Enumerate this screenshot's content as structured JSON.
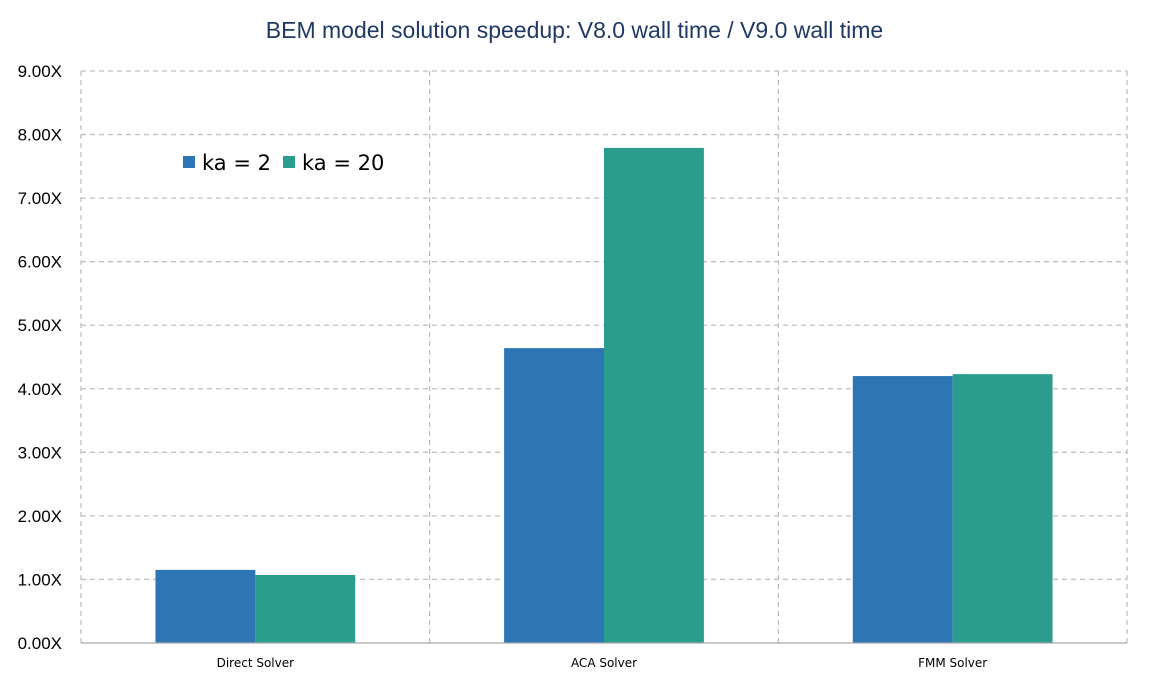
{
  "chart_data": {
    "type": "bar",
    "title": "BEM model solution speedup: V8.0 wall time / V9.0 wall time",
    "xlabel": "",
    "ylabel": "",
    "categories": [
      "Direct Solver",
      "ACA Solver",
      "FMM Solver"
    ],
    "series": [
      {
        "name": "ka = 2",
        "values": [
          1.15,
          4.64,
          4.2
        ],
        "color": "#2e75b6"
      },
      {
        "name": "ka = 20",
        "values": [
          1.07,
          7.79,
          4.23
        ],
        "color": "#2a9d8f"
      }
    ],
    "ylim": [
      0,
      9
    ],
    "yticks": [
      0,
      1,
      2,
      3,
      4,
      5,
      6,
      7,
      8,
      9
    ],
    "ytick_labels": [
      "0.00X",
      "1.00X",
      "2.00X",
      "3.00X",
      "4.00X",
      "5.00X",
      "6.00X",
      "7.00X",
      "8.00X",
      "9.00X"
    ],
    "grid": true,
    "legend_position": "top-left"
  }
}
